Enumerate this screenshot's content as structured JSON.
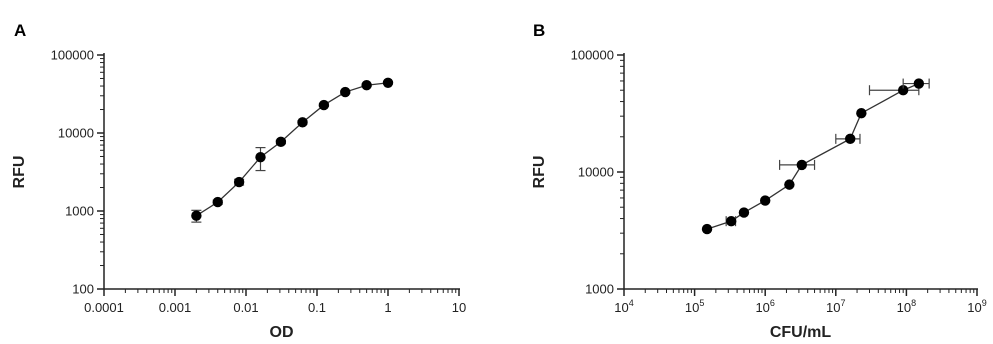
{
  "chart_data": [
    {
      "panel": "A",
      "type": "scatter",
      "xlabel": "OD",
      "ylabel": "RFU",
      "xscale": "log",
      "yscale": "log",
      "xlim": [
        0.0001,
        10
      ],
      "ylim": [
        100,
        100000
      ],
      "xticks": [
        "0.0001",
        "0.001",
        "0.01",
        "0.1",
        "1",
        "10"
      ],
      "yticks": [
        "100",
        "1000",
        "10000",
        "100000"
      ],
      "series": [
        {
          "connected": true,
          "x": [
            0.002,
            0.004,
            0.008,
            0.016,
            0.031,
            0.0625,
            0.125,
            0.25,
            0.5,
            1.0
          ],
          "y": [
            870,
            1300,
            2350,
            4900,
            7700,
            13700,
            22800,
            33500,
            41000,
            44000
          ],
          "y_err": [
            150,
            80,
            200,
            1600,
            400,
            600,
            900,
            1200,
            1500,
            1500
          ],
          "x_err": [
            0,
            0,
            0,
            0,
            0,
            0,
            0,
            0,
            0,
            0
          ]
        }
      ]
    },
    {
      "panel": "B",
      "type": "scatter",
      "xlabel": "CFU/mL",
      "ylabel": "RFU",
      "xscale": "log",
      "yscale": "log",
      "xlim": [
        10000,
        1000000000
      ],
      "ylim": [
        1000,
        100000
      ],
      "xticks": [
        {
          "base": "10",
          "exp": "4"
        },
        {
          "base": "10",
          "exp": "5"
        },
        {
          "base": "10",
          "exp": "6"
        },
        {
          "base": "10",
          "exp": "7"
        },
        {
          "base": "10",
          "exp": "8"
        },
        {
          "base": "10",
          "exp": "9"
        }
      ],
      "yticks": [
        "1000",
        "10000",
        "100000"
      ],
      "series": [
        {
          "connected": true,
          "x": [
            150000,
            330000,
            500000,
            1000000,
            2200000,
            3300000,
            16000000,
            23000000,
            90000000,
            150000000
          ],
          "y": [
            3250,
            3800,
            4500,
            5700,
            7800,
            11500,
            19200,
            31800,
            50000,
            57000
          ],
          "x_err": [
            0,
            50000,
            0,
            0,
            0,
            1700000,
            6000000,
            0,
            60000000,
            60000000
          ],
          "y_err": [
            0,
            0,
            0,
            0,
            0,
            0,
            0,
            0,
            0,
            0
          ]
        }
      ]
    }
  ]
}
